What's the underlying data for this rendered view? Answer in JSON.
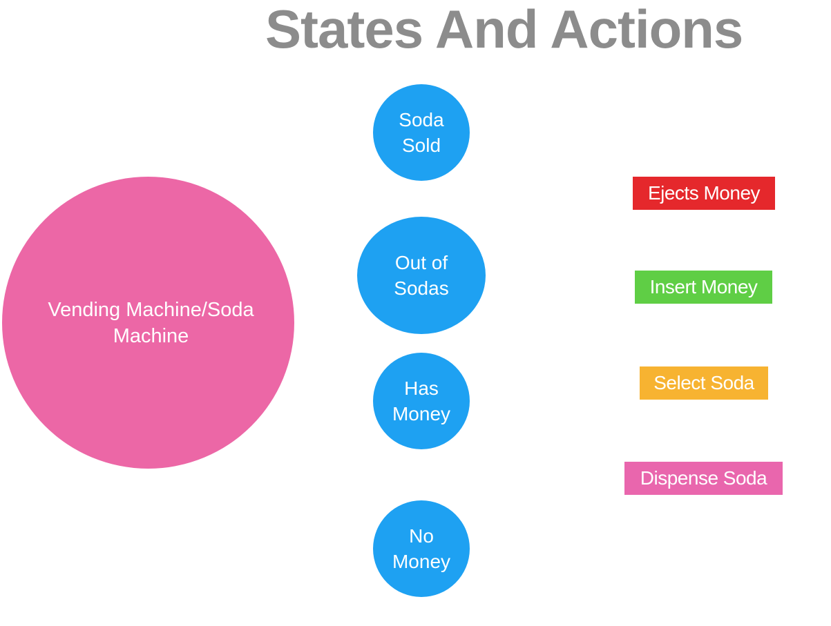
{
  "title": "States And Actions",
  "subject": {
    "label": "Vending Machine/Soda Machine",
    "color": "#ec67a6"
  },
  "states": {
    "color": "#1ea1f2",
    "items": [
      {
        "label": "Soda\nSold"
      },
      {
        "label": "Out of\nSodas"
      },
      {
        "label": "Has\nMoney"
      },
      {
        "label": "No\nMoney"
      }
    ]
  },
  "actions": {
    "items": [
      {
        "label": "Ejects Money",
        "color": "#e5282c"
      },
      {
        "label": "Insert Money",
        "color": "#5fce45"
      },
      {
        "label": "Select Soda",
        "color": "#f7b331"
      },
      {
        "label": "Dispense Soda",
        "color": "#e966ad"
      }
    ]
  }
}
